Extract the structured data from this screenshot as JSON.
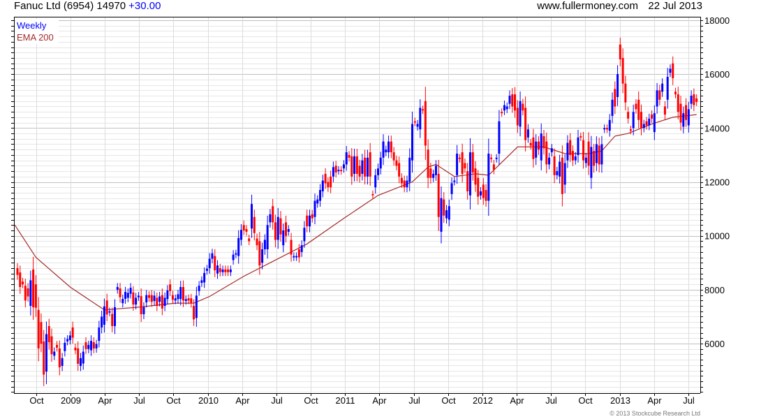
{
  "header": {
    "title": "Fanuc Ltd (6954) 14970",
    "change": "+30.00",
    "site": "www.fullermoney.com",
    "date": "22 Jul 2013"
  },
  "footer": {
    "copyright": "© 2013 Stockcube Research Ltd"
  },
  "chart_data": {
    "type": "candlestick",
    "title": "Fanuc Ltd (6954) 14970 +30.00",
    "legend": [
      {
        "label": "Weekly",
        "color": "#0000ff"
      },
      {
        "label": "EMA 200",
        "color": "#a52a2a"
      }
    ],
    "legend_position": "top-left",
    "colors": {
      "up": "#0000ff",
      "down": "#ff0000",
      "ema": "#a52a2a",
      "grid_major": "#c0c0c0",
      "grid_minor": "#e6e6e6"
    },
    "ylim": [
      4160,
      18130
    ],
    "y_ticks": [
      6000,
      8000,
      10000,
      12000,
      14000,
      16000,
      18000
    ],
    "y_minor_step": 200,
    "x_ticks": [
      "Oct",
      "2009",
      "Apr",
      "Jul",
      "Oct",
      "2010",
      "Apr",
      "Jul",
      "Oct",
      "2011",
      "Apr",
      "Jul",
      "Oct",
      "2012",
      "Apr",
      "Jul",
      "Oct",
      "2013",
      "Apr",
      "Jul"
    ],
    "x_tick_first_week": 7.1,
    "x_tick_step_weeks": 13.04,
    "weeks": 259,
    "candles_open_close": [
      [
        8800,
        8550
      ],
      [
        8640,
        8100
      ],
      [
        8300,
        8200
      ],
      [
        8150,
        7600
      ],
      [
        8050,
        7750
      ],
      [
        7400,
        8350
      ],
      [
        8750,
        7350
      ],
      [
        8200,
        7330
      ],
      [
        7250,
        5820
      ],
      [
        6800,
        6000
      ],
      [
        6080,
        4850
      ],
      [
        4960,
        6350
      ],
      [
        6650,
        6050
      ],
      [
        6270,
        5610
      ],
      [
        5550,
        5700
      ],
      [
        5950,
        5850
      ],
      [
        5820,
        5120
      ],
      [
        5170,
        5460
      ],
      [
        5720,
        6030
      ],
      [
        6080,
        6170
      ],
      [
        6130,
        6300
      ],
      [
        6600,
        6220
      ],
      [
        5850,
        5750
      ],
      [
        5820,
        5250
      ],
      [
        5170,
        5460
      ],
      [
        5260,
        5700
      ],
      [
        6050,
        5800
      ],
      [
        5800,
        5950
      ],
      [
        5750,
        6100
      ],
      [
        6050,
        5820
      ],
      [
        5820,
        5980
      ],
      [
        6100,
        6600
      ],
      [
        6600,
        7000
      ],
      [
        6700,
        7380
      ],
      [
        7600,
        7080
      ],
      [
        7150,
        7200
      ],
      [
        7100,
        6650
      ],
      [
        6650,
        7350
      ],
      [
        8000,
        8100
      ],
      [
        8050,
        7720
      ],
      [
        7500,
        7660
      ],
      [
        7660,
        7920
      ],
      [
        7700,
        7880
      ],
      [
        7850,
        8070
      ],
      [
        7900,
        7450
      ],
      [
        7450,
        7700
      ],
      [
        7720,
        7780
      ],
      [
        7760,
        7090
      ],
      [
        7090,
        7350
      ],
      [
        7530,
        7800
      ],
      [
        7800,
        7700
      ],
      [
        7800,
        7550
      ],
      [
        7580,
        7780
      ],
      [
        7700,
        7400
      ],
      [
        7550,
        7750
      ],
      [
        7800,
        7300
      ],
      [
        7400,
        7700
      ],
      [
        7650,
        7970
      ],
      [
        8200,
        7950
      ],
      [
        7800,
        7630
      ],
      [
        7600,
        7680
      ],
      [
        7650,
        7830
      ],
      [
        7650,
        8100
      ],
      [
        8100,
        7600
      ],
      [
        7580,
        7650
      ],
      [
        7680,
        7600
      ],
      [
        7680,
        7500
      ],
      [
        7400,
        6900
      ],
      [
        6950,
        7780
      ],
      [
        7950,
        8150
      ],
      [
        8250,
        8350
      ],
      [
        8270,
        8620
      ],
      [
        8700,
        8780
      ],
      [
        8800,
        9150
      ],
      [
        9150,
        9350
      ],
      [
        9250,
        8720
      ],
      [
        8600,
        8900
      ],
      [
        8800,
        8650
      ],
      [
        8650,
        8750
      ],
      [
        8750,
        8650
      ],
      [
        8750,
        8650
      ],
      [
        8650,
        8750
      ],
      [
        9100,
        9300
      ],
      [
        9300,
        9350
      ],
      [
        9250,
        9920
      ],
      [
        9850,
        10220
      ],
      [
        10400,
        10200
      ],
      [
        10250,
        10150
      ],
      [
        9900,
        9800
      ],
      [
        10270,
        11180
      ],
      [
        10700,
        10100
      ],
      [
        9900,
        9650
      ],
      [
        9800,
        8900
      ],
      [
        9000,
        9500
      ],
      [
        9500,
        9850
      ],
      [
        9500,
        10400
      ],
      [
        10500,
        10800
      ],
      [
        11100,
        10500
      ],
      [
        10500,
        9850
      ],
      [
        9850,
        10700
      ],
      [
        10650,
        10050
      ],
      [
        9650,
        10200
      ],
      [
        10500,
        10000
      ],
      [
        10150,
        10250
      ],
      [
        9850,
        9300
      ],
      [
        9200,
        9250
      ],
      [
        9200,
        9250
      ],
      [
        9500,
        9200
      ],
      [
        9400,
        9650
      ],
      [
        9800,
        10300
      ],
      [
        10750,
        10350
      ],
      [
        10350,
        10750
      ],
      [
        10800,
        10650
      ],
      [
        10700,
        11300
      ],
      [
        11200,
        11350
      ],
      [
        11300,
        11700
      ],
      [
        11650,
        12050
      ],
      [
        12300,
        11950
      ],
      [
        12000,
        11800
      ],
      [
        12200,
        11800
      ],
      [
        12200,
        12550
      ],
      [
        12600,
        12350
      ],
      [
        12400,
        12450
      ],
      [
        12450,
        12400
      ],
      [
        12500,
        12650
      ],
      [
        12650,
        13100
      ],
      [
        13000,
        12900
      ],
      [
        12950,
        12200
      ],
      [
        12300,
        12950
      ],
      [
        12950,
        12300
      ],
      [
        12600,
        12200
      ],
      [
        12300,
        12800
      ],
      [
        12900,
        12200
      ],
      [
        12200,
        12900
      ],
      [
        13100,
        12200
      ],
      [
        11550,
        11500
      ],
      [
        11800,
        12250
      ],
      [
        12250,
        12500
      ],
      [
        12500,
        12900
      ],
      [
        12900,
        13500
      ],
      [
        13100,
        13200
      ],
      [
        13100,
        13500
      ],
      [
        13500,
        13100
      ],
      [
        13100,
        12800
      ],
      [
        12800,
        12600
      ],
      [
        12700,
        12200
      ],
      [
        12150,
        11950
      ],
      [
        12050,
        11800
      ],
      [
        11800,
        12050
      ],
      [
        12000,
        12900
      ],
      [
        12800,
        14150
      ],
      [
        14250,
        14200
      ],
      [
        14050,
        14150
      ],
      [
        13950,
        14750
      ],
      [
        14700,
        14650
      ],
      [
        15000,
        13350
      ],
      [
        13200,
        12150
      ],
      [
        12500,
        12150
      ],
      [
        12150,
        12300
      ],
      [
        12250,
        12600
      ],
      [
        12300,
        10700
      ],
      [
        10150,
        11400
      ],
      [
        11350,
        10750
      ],
      [
        10650,
        10950
      ],
      [
        10600,
        11100
      ],
      [
        11550,
        11950
      ],
      [
        12000,
        12050
      ],
      [
        12250,
        13050
      ],
      [
        12900,
        12850
      ],
      [
        13100,
        12300
      ],
      [
        12700,
        12500
      ],
      [
        12400,
        11650
      ],
      [
        11500,
        13100
      ],
      [
        13100,
        12350
      ],
      [
        12500,
        11900
      ],
      [
        12150,
        11450
      ],
      [
        11500,
        11650
      ],
      [
        11900,
        11400
      ],
      [
        11700,
        11300
      ],
      [
        11300,
        13050
      ],
      [
        12900,
        12850
      ],
      [
        12650,
        12450
      ],
      [
        12850,
        12900
      ],
      [
        13050,
        14250
      ],
      [
        14600,
        14550
      ],
      [
        14650,
        14850
      ],
      [
        14700,
        14800
      ],
      [
        14900,
        15200
      ],
      [
        15250,
        14800
      ],
      [
        15250,
        14650
      ],
      [
        14750,
        14100
      ],
      [
        14050,
        15000
      ],
      [
        14900,
        14650
      ],
      [
        14750,
        13550
      ],
      [
        13650,
        13950
      ],
      [
        13450,
        13350
      ],
      [
        13650,
        12850
      ],
      [
        12900,
        13500
      ],
      [
        13500,
        13200
      ],
      [
        12800,
        13800
      ],
      [
        13700,
        13250
      ],
      [
        13500,
        12650
      ],
      [
        12650,
        12900
      ],
      [
        13100,
        13250
      ],
      [
        12950,
        12250
      ],
      [
        12250,
        12400
      ],
      [
        12200,
        12750
      ],
      [
        12900,
        11550
      ],
      [
        11900,
        12700
      ],
      [
        12800,
        13450
      ],
      [
        13550,
        13000
      ],
      [
        13150,
        12800
      ],
      [
        12800,
        12950
      ],
      [
        13000,
        13650
      ],
      [
        13700,
        13650
      ],
      [
        13550,
        12800
      ],
      [
        12700,
        12900
      ],
      [
        13500,
        12600
      ],
      [
        12150,
        13300
      ],
      [
        13150,
        12600
      ],
      [
        12700,
        13400
      ],
      [
        13350,
        12650
      ],
      [
        12650,
        13400
      ],
      [
        13950,
        14000
      ],
      [
        14000,
        13950
      ],
      [
        13900,
        14300
      ],
      [
        14450,
        15050
      ],
      [
        15450,
        14800
      ],
      [
        15150,
        16000
      ],
      [
        17100,
        16550
      ],
      [
        16600,
        15650
      ],
      [
        15650,
        14950
      ],
      [
        14600,
        14350
      ],
      [
        13950,
        13900
      ],
      [
        14000,
        14600
      ],
      [
        14900,
        14700
      ],
      [
        15050,
        14300
      ],
      [
        14600,
        14000
      ],
      [
        14000,
        14150
      ],
      [
        14250,
        14100
      ],
      [
        14100,
        14350
      ],
      [
        14500,
        14350
      ],
      [
        13850,
        14550
      ],
      [
        14800,
        15400
      ],
      [
        15400,
        15050
      ],
      [
        15350,
        15650
      ],
      [
        14800,
        14500
      ],
      [
        15050,
        15900
      ],
      [
        16050,
        16200
      ],
      [
        16400,
        15850
      ],
      [
        15350,
        15250
      ],
      [
        15250,
        14600
      ],
      [
        14900,
        14200
      ],
      [
        14050,
        14550
      ],
      [
        14850,
        14300
      ],
      [
        14100,
        14700
      ],
      [
        14900,
        15200
      ],
      [
        15250,
        14850
      ],
      [
        15100,
        14970
      ]
    ],
    "ema200_points": [
      [
        -1,
        10400
      ],
      [
        7,
        9200
      ],
      [
        20,
        8100
      ],
      [
        33,
        7250
      ],
      [
        46,
        7350
      ],
      [
        60,
        7500
      ],
      [
        67,
        7500
      ],
      [
        73,
        7750
      ],
      [
        86,
        8500
      ],
      [
        94,
        8900
      ],
      [
        104,
        9400
      ],
      [
        110,
        9700
      ],
      [
        124,
        10650
      ],
      [
        137,
        11500
      ],
      [
        150,
        12000
      ],
      [
        156,
        12550
      ],
      [
        159,
        12650
      ],
      [
        166,
        12200
      ],
      [
        174,
        12300
      ],
      [
        179,
        12250
      ],
      [
        190,
        13300
      ],
      [
        200,
        13300
      ],
      [
        208,
        13050
      ],
      [
        217,
        13050
      ],
      [
        222,
        13150
      ],
      [
        227,
        13700
      ],
      [
        232,
        13800
      ],
      [
        241,
        14150
      ],
      [
        249,
        14400
      ],
      [
        258,
        14500
      ]
    ]
  }
}
